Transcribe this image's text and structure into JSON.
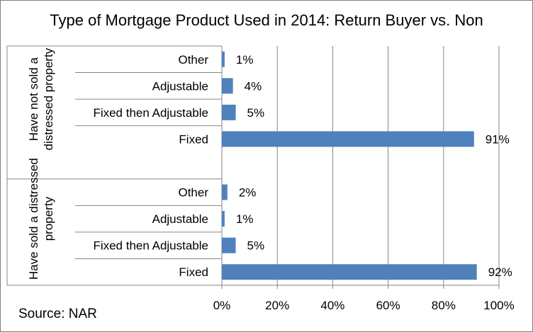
{
  "title": "Type of Mortgage Product Used in 2014: Return Buyer vs. Non",
  "source": "Source: NAR",
  "chart_data": {
    "type": "bar",
    "orientation": "horizontal",
    "title": "Type of Mortgage Product Used in 2014: Return Buyer vs. Non",
    "xlim": [
      0,
      100
    ],
    "x_ticks": [
      "0%",
      "20%",
      "40%",
      "60%",
      "80%",
      "100%"
    ],
    "grid": "vertical major gridlines",
    "bar_color": "#4f81bd",
    "groups": [
      {
        "label": "Have not sold a distressed property",
        "categories": [
          "Other",
          "Adjustable",
          "Fixed then Adjustable",
          "Fixed"
        ],
        "values": [
          1,
          4,
          5,
          91
        ],
        "value_labels": [
          "1%",
          "4%",
          "5%",
          "91%"
        ]
      },
      {
        "label": "Have sold a distressed property",
        "categories": [
          "Other",
          "Adjustable",
          "Fixed then Adjustable",
          "Fixed"
        ],
        "values": [
          2,
          1,
          5,
          92
        ],
        "value_labels": [
          "2%",
          "1%",
          "5%",
          "92%"
        ]
      }
    ]
  }
}
